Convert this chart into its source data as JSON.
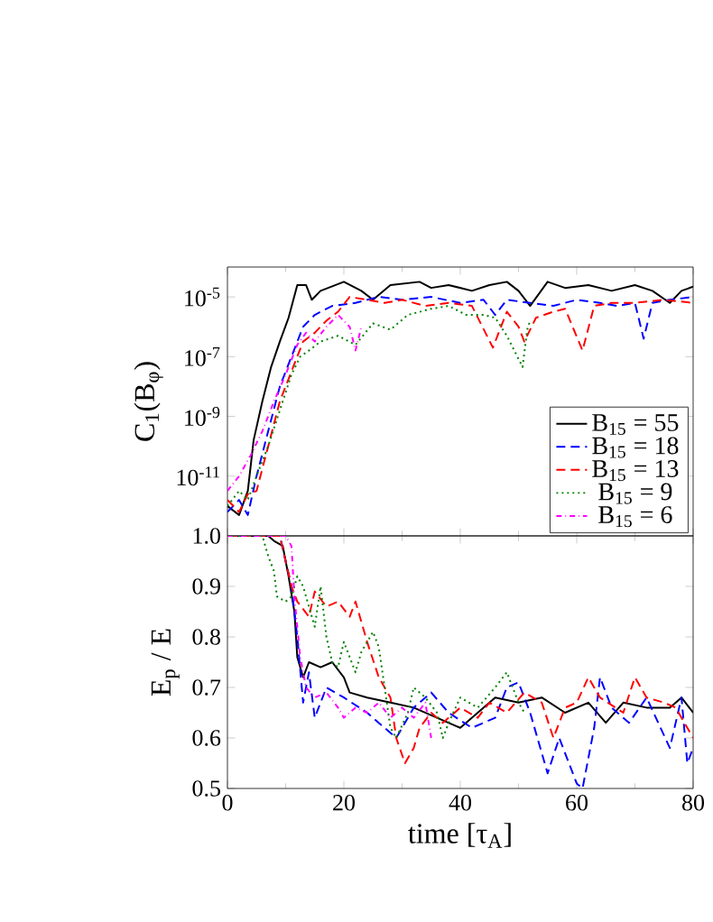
{
  "chart_data": [
    {
      "type": "line",
      "ylabel": "C$_{1}$(B$_{φ}$)",
      "log": "y",
      "xlim": [
        0,
        80
      ],
      "xticks": [
        0,
        20,
        40,
        60,
        80
      ],
      "ylim": [
        1e-13,
        0.0001
      ],
      "yticks": [
        {
          "value": 1e-11,
          "label": "10$^{-11}$"
        },
        {
          "value": 1e-09,
          "label": "10$^{-9}$"
        },
        {
          "value": 1e-07,
          "label": "10$^{-7}$"
        },
        {
          "value": 1e-05,
          "label": "10$^{-5}$"
        }
      ],
      "tick_labels": "y",
      "legend": "bottom right",
      "series": [
        {
          "name": "B$_{15}$ = 55",
          "color": "#000000",
          "line_style": "solid",
          "x": [
            0,
            2,
            3.5,
            4.5,
            6,
            7.5,
            9,
            10.5,
            12,
            13.5,
            14.5,
            16,
            20,
            23,
            25,
            28,
            33,
            35,
            38,
            42,
            45,
            48,
            50,
            52,
            55,
            58,
            62,
            66,
            70,
            73,
            76,
            78,
            80
          ],
          "values": [
            1e-12,
            5e-13,
            3.2e-12,
            1.6e-10,
            3.2e-09,
            4.5e-08,
            3.2e-07,
            2e-06,
            2.5e-05,
            2.5e-05,
            8e-06,
            1.6e-05,
            3.2e-05,
            1.6e-05,
            8e-06,
            2.5e-05,
            3.2e-05,
            2e-05,
            2.5e-05,
            1.6e-05,
            2.5e-05,
            3.2e-05,
            1.6e-05,
            5e-06,
            3.2e-05,
            2e-05,
            2.5e-05,
            1.6e-05,
            2.5e-05,
            1.6e-05,
            6.3e-06,
            1.6e-05,
            2.2e-05
          ]
        },
        {
          "name": "B$_{15}$ = 18",
          "color": "#0000ff",
          "line_style": "dashed",
          "x": [
            0,
            2,
            3.5,
            5,
            7,
            9,
            11,
            13,
            15,
            18,
            22,
            26,
            30,
            35,
            40,
            44,
            46,
            48,
            52,
            56,
            60,
            64,
            67,
            70,
            71.5,
            73,
            76,
            80
          ],
          "values": [
            6.3e-13,
            1.6e-12,
            5e-13,
            1e-11,
            3.2e-10,
            1e-08,
            1e-07,
            1e-06,
            2.5e-06,
            5e-06,
            6.3e-06,
            1e-05,
            8e-06,
            1e-05,
            6.3e-06,
            8e-06,
            2.5e-06,
            8e-06,
            6.3e-06,
            5e-06,
            8e-06,
            6.3e-06,
            5e-06,
            6.3e-06,
            4e-07,
            6.3e-06,
            8e-06,
            1e-05
          ]
        },
        {
          "name": "B$_{15}$ = 13",
          "color": "#ff0000",
          "line_style": "dashed",
          "x": [
            0,
            2,
            3.5,
            5,
            7,
            9,
            11,
            13,
            15,
            17,
            19,
            21,
            24,
            27,
            30,
            34,
            38,
            42,
            45.6,
            48,
            50,
            51,
            53,
            56,
            58,
            61,
            63,
            66,
            70,
            75,
            80
          ],
          "values": [
            1.6e-12,
            6.3e-13,
            2.5e-12,
            3.2e-12,
            1e-10,
            3.2e-09,
            3.2e-08,
            3.2e-07,
            6.3e-07,
            1.6e-06,
            3.2e-06,
            1e-05,
            8e-06,
            6.3e-06,
            8e-06,
            5e-06,
            6.3e-06,
            5e-06,
            2e-07,
            3.2e-06,
            1e-06,
            3.2e-07,
            2e-06,
            3.2e-06,
            4e-06,
            1.6e-07,
            5e-06,
            6.3e-06,
            6.3e-06,
            8e-06,
            6.3e-06
          ]
        },
        {
          "name": "B$_{15}$ = 9",
          "color": "#008000",
          "line_style": "dotted",
          "x": [
            0,
            2,
            3.5,
            5,
            7,
            9,
            11,
            12.5,
            14,
            16,
            19,
            22,
            25,
            28,
            31,
            35,
            38,
            41,
            44,
            46,
            48,
            50.7,
            51.5,
            52
          ],
          "values": [
            1e-12,
            3.2e-12,
            1.6e-12,
            1e-11,
            1e-10,
            1.6e-09,
            2.5e-08,
            1e-07,
            1.6e-07,
            3.2e-07,
            5e-07,
            2.5e-07,
            1.3e-06,
            8e-07,
            2.5e-06,
            4e-06,
            5e-06,
            2.5e-06,
            2.5e-06,
            2e-06,
            5e-07,
            4.5e-08,
            8e-07,
            1.6e-06
          ]
        },
        {
          "name": "B$_{15}$ = 6",
          "color": "#ff00ff",
          "line_style": "dashdot",
          "x": [
            0,
            2,
            4,
            6,
            8,
            10,
            12,
            13.5,
            15,
            17,
            19,
            21,
            22,
            23
          ],
          "values": [
            3.2e-12,
            1e-11,
            5e-11,
            3.2e-10,
            3.2e-09,
            2.5e-08,
            2.5e-07,
            6.3e-07,
            3.2e-07,
            1e-06,
            2.5e-06,
            1e-06,
            1.6e-07,
            1e-06
          ]
        }
      ]
    },
    {
      "type": "line",
      "xlabel": "time [τ$_{A}$]",
      "ylabel": "E$_{p}$ / E",
      "xlim": [
        0,
        80
      ],
      "xticks": [
        0,
        20,
        40,
        60,
        80
      ],
      "ylim": [
        0.5,
        1.0
      ],
      "yticks": [
        0.5,
        0.6,
        0.7,
        0.8,
        0.9,
        {
          "value": 1.0,
          "label": "1.0"
        }
      ],
      "series": [
        {
          "color": "#000000",
          "line_style": "solid",
          "x": [
            0,
            7,
            8,
            9.5,
            10.5,
            11.5,
            12,
            13,
            14,
            16,
            18,
            20,
            21,
            24,
            28,
            32,
            36,
            40,
            43,
            46,
            50,
            54,
            58,
            62,
            65,
            68,
            72,
            76,
            78,
            80
          ],
          "values": [
            1.0,
            1.0,
            0.99,
            0.98,
            0.92,
            0.85,
            0.76,
            0.72,
            0.75,
            0.74,
            0.75,
            0.72,
            0.69,
            0.68,
            0.67,
            0.66,
            0.64,
            0.62,
            0.65,
            0.68,
            0.67,
            0.68,
            0.65,
            0.67,
            0.63,
            0.67,
            0.66,
            0.66,
            0.68,
            0.65
          ]
        },
        {
          "color": "#0000ff",
          "line_style": "dashed",
          "x": [
            0,
            9,
            11,
            12,
            13,
            14,
            15,
            17,
            20,
            24,
            27,
            29,
            32,
            35,
            38,
            42,
            46,
            48,
            50,
            52,
            54,
            55,
            57,
            60,
            61,
            63,
            64,
            66,
            69,
            72,
            74,
            76,
            78,
            79,
            80
          ],
          "values": [
            1.0,
            1.0,
            0.9,
            0.8,
            0.67,
            0.73,
            0.64,
            0.7,
            0.68,
            0.65,
            0.62,
            0.6,
            0.66,
            0.69,
            0.65,
            0.62,
            0.64,
            0.7,
            0.71,
            0.65,
            0.57,
            0.53,
            0.6,
            0.51,
            0.5,
            0.62,
            0.72,
            0.66,
            0.63,
            0.68,
            0.63,
            0.58,
            0.68,
            0.55,
            0.58
          ]
        },
        {
          "color": "#ff0000",
          "line_style": "dashed",
          "x": [
            0,
            9,
            11,
            12,
            14,
            15,
            17,
            19,
            21,
            22,
            24,
            26,
            28,
            29,
            30.5,
            32,
            33,
            35,
            37,
            40,
            43,
            45,
            48,
            51,
            54,
            56,
            58,
            60,
            62,
            64,
            68,
            70,
            72,
            75,
            77,
            79,
            80
          ],
          "values": [
            1.0,
            1.0,
            0.9,
            0.87,
            0.84,
            0.89,
            0.86,
            0.87,
            0.84,
            0.87,
            0.79,
            0.72,
            0.68,
            0.6,
            0.55,
            0.58,
            0.62,
            0.65,
            0.63,
            0.66,
            0.64,
            0.67,
            0.65,
            0.69,
            0.67,
            0.6,
            0.66,
            0.67,
            0.72,
            0.68,
            0.65,
            0.72,
            0.68,
            0.67,
            0.66,
            0.62,
            0.6
          ]
        },
        {
          "color": "#008000",
          "line_style": "dotted",
          "x": [
            0,
            6,
            7,
            8,
            8.5,
            10,
            11,
            12,
            13,
            14,
            15,
            16,
            17,
            18,
            19,
            20,
            22,
            23,
            25,
            26,
            27,
            28,
            29,
            31,
            32,
            34,
            36,
            37,
            38,
            40,
            43,
            46,
            48,
            50,
            51
          ],
          "values": [
            1.0,
            1.0,
            0.96,
            0.93,
            0.88,
            0.87,
            0.88,
            0.92,
            0.9,
            0.86,
            0.82,
            0.9,
            0.8,
            0.75,
            0.74,
            0.79,
            0.73,
            0.77,
            0.81,
            0.78,
            0.7,
            0.62,
            0.6,
            0.65,
            0.7,
            0.68,
            0.65,
            0.6,
            0.63,
            0.68,
            0.66,
            0.7,
            0.73,
            0.67,
            0.65
          ]
        },
        {
          "color": "#ff00ff",
          "line_style": "dashdot",
          "x": [
            0,
            10,
            11,
            11.5,
            12.5,
            13.5,
            15,
            17,
            19,
            20,
            22,
            24,
            26,
            28,
            30,
            32,
            34,
            35
          ],
          "values": [
            1.0,
            1.0,
            0.98,
            0.88,
            0.76,
            0.7,
            0.68,
            0.69,
            0.66,
            0.64,
            0.66,
            0.65,
            0.67,
            0.64,
            0.66,
            0.64,
            0.67,
            0.6
          ]
        }
      ]
    }
  ]
}
